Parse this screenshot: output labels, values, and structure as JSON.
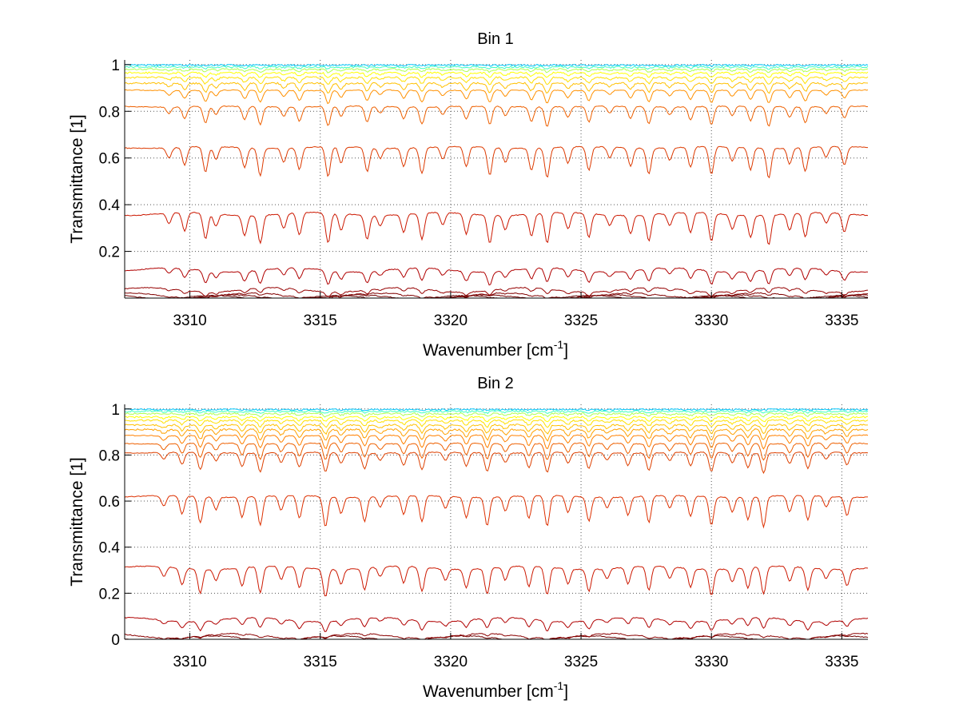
{
  "chart_data": [
    {
      "type": "line",
      "title": "Bin 1",
      "xlabel": "Wavenumber [cm",
      "xlabel_sup": "-1",
      "xlabel_end": "]",
      "ylabel": "Transmittance [1]",
      "xlim": [
        3307.5,
        3336.0
      ],
      "ylim": [
        0.0,
        1.02
      ],
      "xticks": [
        3310,
        3315,
        3320,
        3325,
        3330,
        3335
      ],
      "xtick_labels": [
        "3310",
        "3315",
        "3320",
        "3325",
        "3330",
        "3335"
      ],
      "yticks": [
        0.2,
        0.4,
        0.6,
        0.8,
        1.0
      ],
      "ytick_labels": [
        "0.2",
        "0.4",
        "0.6",
        "0.8",
        "1"
      ],
      "grid": true,
      "series_baselines": [
        0.998,
        0.99,
        0.98,
        0.965,
        0.945,
        0.92,
        0.89,
        0.82,
        0.645,
        0.36,
        0.12,
        0.035,
        0.012,
        0.004,
        0.001
      ],
      "series_colors": [
        "#00c8ff",
        "#40ffbf",
        "#b0ff50",
        "#ffff00",
        "#ffe000",
        "#ffc000",
        "#ff9000",
        "#ee6000",
        "#dd3a00",
        "#cc1800",
        "#b00000",
        "#950000",
        "#800000",
        "#700000",
        "#600000"
      ],
      "absorption_lines": [
        3309.2,
        3309.8,
        3310.6,
        3311.0,
        3312.1,
        3312.7,
        3313.6,
        3314.2,
        3315.3,
        3315.8,
        3316.8,
        3317.3,
        3318.2,
        3318.9,
        3319.7,
        3320.6,
        3321.5,
        3322.1,
        3323.1,
        3323.7,
        3324.5,
        3325.3,
        3326.1,
        3326.9,
        3327.6,
        3328.4,
        3329.2,
        3330.0,
        3330.8,
        3331.5,
        3332.2,
        3333.0,
        3333.6,
        3334.4,
        3335.1
      ]
    },
    {
      "type": "line",
      "title": "Bin 2",
      "xlabel": "Wavenumber [cm",
      "xlabel_sup": "-1",
      "xlabel_end": "]",
      "ylabel": "Transmittance [1]",
      "xlim": [
        3307.5,
        3336.0
      ],
      "ylim": [
        0.0,
        1.02
      ],
      "xticks": [
        3310,
        3315,
        3320,
        3325,
        3330,
        3335
      ],
      "xtick_labels": [
        "3310",
        "3315",
        "3320",
        "3325",
        "3330",
        "3335"
      ],
      "yticks": [
        0.0,
        0.2,
        0.4,
        0.6,
        0.8,
        1.0
      ],
      "ytick_labels": [
        "0",
        "0.2",
        "0.4",
        "0.6",
        "0.8",
        "1"
      ],
      "grid": true,
      "series_baselines": [
        0.998,
        0.99,
        0.98,
        0.965,
        0.95,
        0.93,
        0.91,
        0.885,
        0.85,
        0.81,
        0.62,
        0.31,
        0.085,
        0.015,
        0.005
      ],
      "series_colors": [
        "#00c8ff",
        "#40ffbf",
        "#b0ff50",
        "#ffff00",
        "#ffe000",
        "#ffc000",
        "#ffa000",
        "#ff8000",
        "#ee6000",
        "#dd4000",
        "#dd3000",
        "#cc1800",
        "#b00000",
        "#8a0000",
        "#700000"
      ],
      "absorption_lines": [
        3309.0,
        3309.7,
        3310.4,
        3311.0,
        3312.0,
        3312.7,
        3313.5,
        3314.2,
        3315.2,
        3315.8,
        3316.7,
        3317.3,
        3318.2,
        3318.9,
        3319.8,
        3320.6,
        3321.4,
        3322.1,
        3323.0,
        3323.7,
        3324.5,
        3325.3,
        3326.0,
        3326.8,
        3327.6,
        3328.4,
        3329.2,
        3330.0,
        3330.8,
        3331.4,
        3332.0,
        3333.0,
        3333.7,
        3334.4,
        3335.2
      ]
    }
  ]
}
